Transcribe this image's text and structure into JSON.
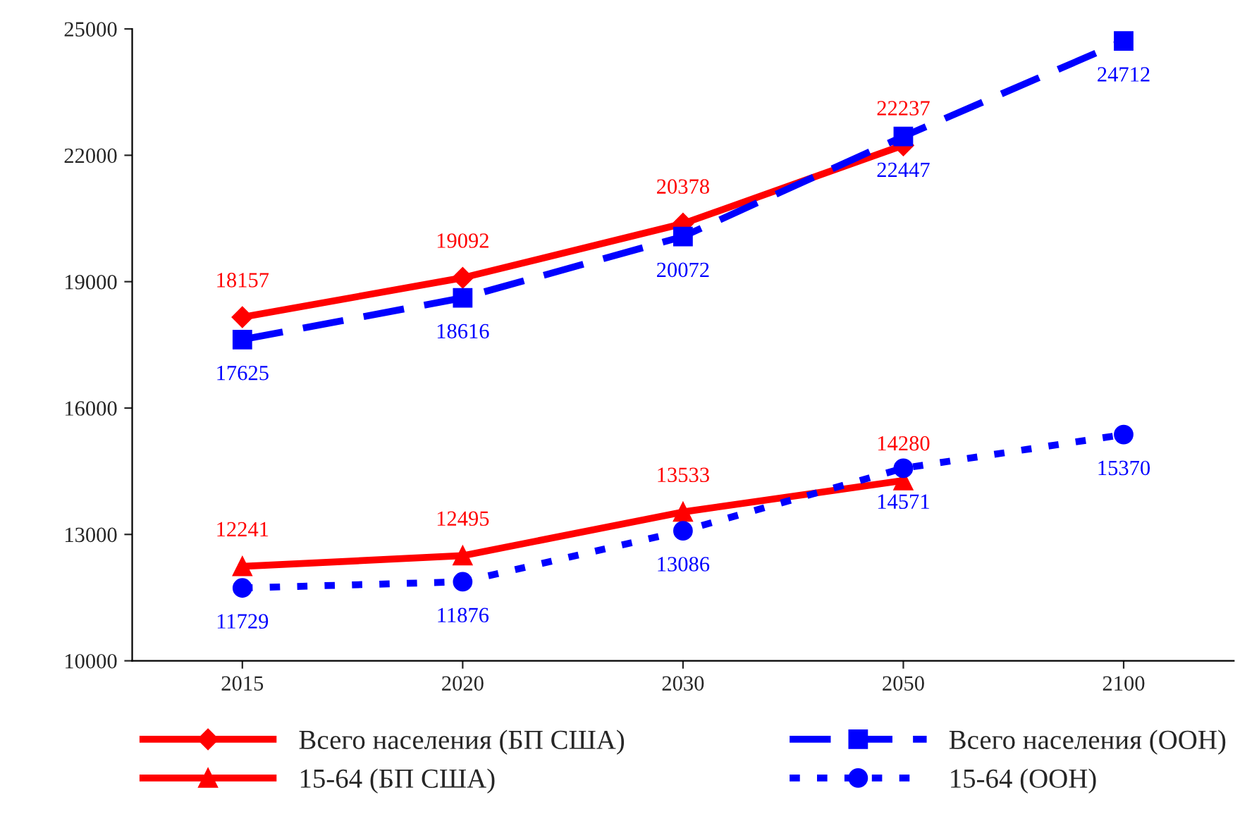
{
  "chart_data": {
    "type": "line",
    "categories": [
      "2015",
      "2020",
      "2030",
      "2050",
      "2100"
    ],
    "series": [
      {
        "name": "Всего населения (БП США)",
        "color": "#ff0000",
        "values": [
          18157,
          19092,
          20378,
          22237,
          null
        ],
        "marker": "diamond",
        "line_style": "solid"
      },
      {
        "name": "Всего населения (ООН)",
        "color": "#0000ff",
        "values": [
          17625,
          18616,
          20072,
          22447,
          24712
        ],
        "marker": "square",
        "line_style": "dashed"
      },
      {
        "name": "15-64 (БП США)",
        "color": "#ff0000",
        "values": [
          12241,
          12495,
          13533,
          14280,
          null
        ],
        "marker": "triangle",
        "line_style": "solid"
      },
      {
        "name": "15-64 (ООН)",
        "color": "#0000ff",
        "values": [
          11729,
          11876,
          13086,
          14571,
          15370
        ],
        "marker": "circle",
        "line_style": "dotted"
      }
    ],
    "ylim": [
      10000,
      25000
    ],
    "yticks": [
      10000,
      13000,
      16000,
      19000,
      22000,
      25000
    ],
    "data_labels": true,
    "grid": false,
    "legend": "bottom"
  }
}
